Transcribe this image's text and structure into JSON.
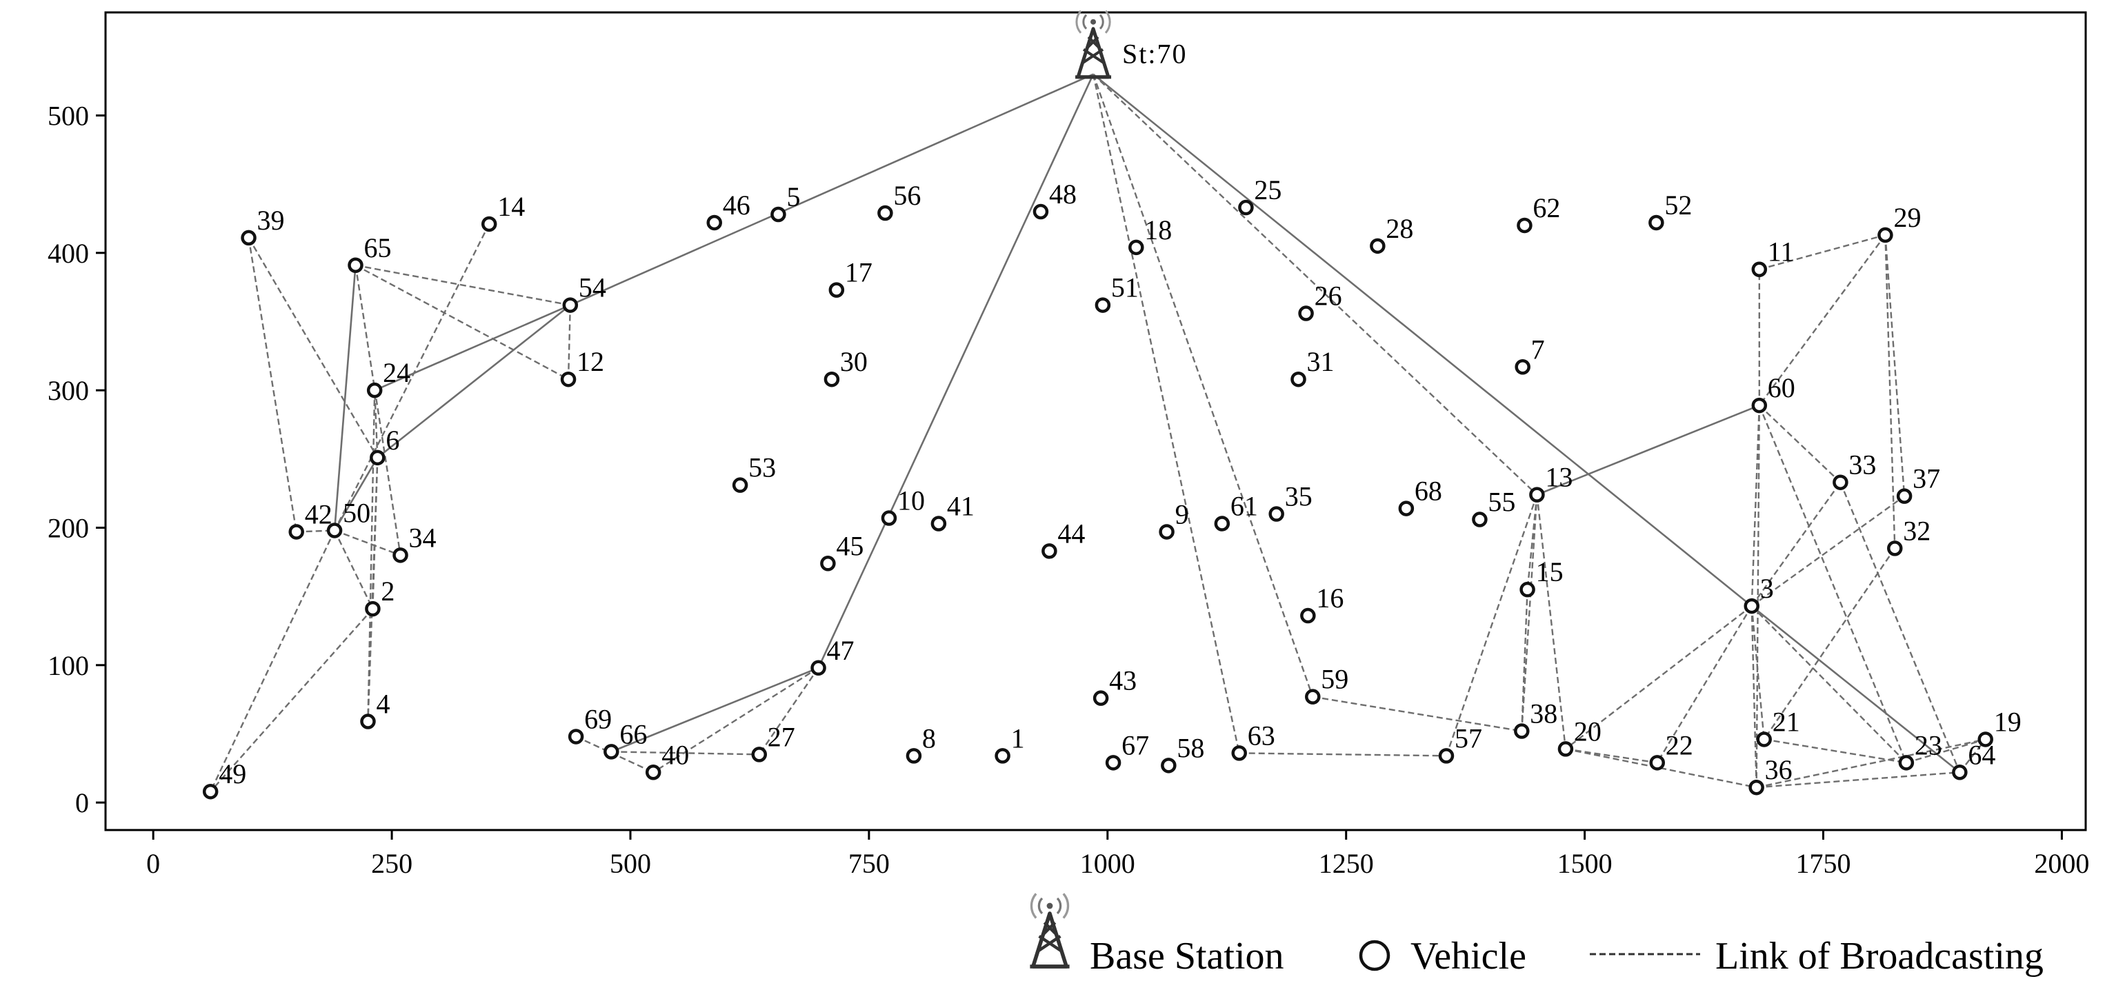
{
  "chart_data": {
    "type": "network",
    "xlim": [
      -50,
      2025
    ],
    "ylim": [
      -20,
      575
    ],
    "xticks": [
      0,
      250,
      500,
      750,
      1000,
      1250,
      1500,
      1750,
      2000
    ],
    "yticks": [
      0,
      100,
      200,
      300,
      400,
      500
    ],
    "base_station": {
      "label": "St:70",
      "x": 985,
      "y": 530
    },
    "vehicles": [
      {
        "id": "1",
        "x": 890,
        "y": 34
      },
      {
        "id": "2",
        "x": 230,
        "y": 141
      },
      {
        "id": "3",
        "x": 1675,
        "y": 143
      },
      {
        "id": "4",
        "x": 225,
        "y": 59
      },
      {
        "id": "5",
        "x": 655,
        "y": 428
      },
      {
        "id": "6",
        "x": 235,
        "y": 251
      },
      {
        "id": "7",
        "x": 1435,
        "y": 317
      },
      {
        "id": "8",
        "x": 797,
        "y": 34
      },
      {
        "id": "9",
        "x": 1062,
        "y": 197
      },
      {
        "id": "10",
        "x": 771,
        "y": 207
      },
      {
        "id": "11",
        "x": 1683,
        "y": 388
      },
      {
        "id": "12",
        "x": 435,
        "y": 308
      },
      {
        "id": "13",
        "x": 1450,
        "y": 224
      },
      {
        "id": "14",
        "x": 352,
        "y": 421
      },
      {
        "id": "15",
        "x": 1440,
        "y": 155
      },
      {
        "id": "16",
        "x": 1210,
        "y": 136
      },
      {
        "id": "17",
        "x": 716,
        "y": 373
      },
      {
        "id": "18",
        "x": 1030,
        "y": 404
      },
      {
        "id": "19",
        "x": 1920,
        "y": 46
      },
      {
        "id": "20",
        "x": 1480,
        "y": 39
      },
      {
        "id": "21",
        "x": 1688,
        "y": 46
      },
      {
        "id": "22",
        "x": 1576,
        "y": 29
      },
      {
        "id": "23",
        "x": 1837,
        "y": 29
      },
      {
        "id": "24",
        "x": 232,
        "y": 300
      },
      {
        "id": "25",
        "x": 1145,
        "y": 433
      },
      {
        "id": "26",
        "x": 1208,
        "y": 356
      },
      {
        "id": "27",
        "x": 635,
        "y": 35
      },
      {
        "id": "28",
        "x": 1283,
        "y": 405
      },
      {
        "id": "29",
        "x": 1815,
        "y": 413
      },
      {
        "id": "30",
        "x": 711,
        "y": 308
      },
      {
        "id": "31",
        "x": 1200,
        "y": 308
      },
      {
        "id": "32",
        "x": 1825,
        "y": 185
      },
      {
        "id": "33",
        "x": 1768,
        "y": 233
      },
      {
        "id": "34",
        "x": 259,
        "y": 180
      },
      {
        "id": "35",
        "x": 1177,
        "y": 210
      },
      {
        "id": "36",
        "x": 1680,
        "y": 11
      },
      {
        "id": "37",
        "x": 1835,
        "y": 223
      },
      {
        "id": "38",
        "x": 1434,
        "y": 52
      },
      {
        "id": "39",
        "x": 100,
        "y": 411
      },
      {
        "id": "40",
        "x": 524,
        "y": 22
      },
      {
        "id": "41",
        "x": 823,
        "y": 203
      },
      {
        "id": "42",
        "x": 150,
        "y": 197
      },
      {
        "id": "43",
        "x": 993,
        "y": 76
      },
      {
        "id": "44",
        "x": 939,
        "y": 183
      },
      {
        "id": "45",
        "x": 707,
        "y": 174
      },
      {
        "id": "46",
        "x": 588,
        "y": 422
      },
      {
        "id": "47",
        "x": 697,
        "y": 98
      },
      {
        "id": "48",
        "x": 930,
        "y": 430
      },
      {
        "id": "49",
        "x": 60,
        "y": 8
      },
      {
        "id": "50",
        "x": 190,
        "y": 198
      },
      {
        "id": "51",
        "x": 995,
        "y": 362
      },
      {
        "id": "52",
        "x": 1575,
        "y": 422
      },
      {
        "id": "53",
        "x": 615,
        "y": 231
      },
      {
        "id": "54",
        "x": 437,
        "y": 362
      },
      {
        "id": "55",
        "x": 1390,
        "y": 206
      },
      {
        "id": "56",
        "x": 767,
        "y": 429
      },
      {
        "id": "57",
        "x": 1355,
        "y": 34
      },
      {
        "id": "58",
        "x": 1064,
        "y": 27
      },
      {
        "id": "59",
        "x": 1215,
        "y": 77
      },
      {
        "id": "60",
        "x": 1683,
        "y": 289
      },
      {
        "id": "61",
        "x": 1120,
        "y": 203
      },
      {
        "id": "62",
        "x": 1437,
        "y": 420
      },
      {
        "id": "63",
        "x": 1138,
        "y": 36
      },
      {
        "id": "64",
        "x": 1893,
        "y": 22
      },
      {
        "id": "65",
        "x": 212,
        "y": 391
      },
      {
        "id": "66",
        "x": 480,
        "y": 37
      },
      {
        "id": "67",
        "x": 1006,
        "y": 29
      },
      {
        "id": "68",
        "x": 1313,
        "y": 214
      },
      {
        "id": "69",
        "x": 443,
        "y": 48
      }
    ],
    "solid_links": [
      [
        "70",
        "54"
      ],
      [
        "70",
        "3"
      ],
      [
        "70",
        "47"
      ],
      [
        "54",
        "6"
      ],
      [
        "6",
        "50"
      ],
      [
        "47",
        "66"
      ],
      [
        "60",
        "13"
      ],
      [
        "3",
        "64"
      ],
      [
        "65",
        "50"
      ],
      [
        "24",
        "54"
      ]
    ],
    "dashed_links": [
      [
        "70",
        "13"
      ],
      [
        "70",
        "63"
      ],
      [
        "70",
        "59"
      ],
      [
        "47",
        "40"
      ],
      [
        "66",
        "27"
      ],
      [
        "69",
        "40"
      ],
      [
        "47",
        "27"
      ],
      [
        "65",
        "54"
      ],
      [
        "65",
        "12"
      ],
      [
        "54",
        "12"
      ],
      [
        "65",
        "34"
      ],
      [
        "14",
        "50"
      ],
      [
        "39",
        "42"
      ],
      [
        "39",
        "6"
      ],
      [
        "42",
        "50"
      ],
      [
        "50",
        "34"
      ],
      [
        "50",
        "2"
      ],
      [
        "6",
        "2"
      ],
      [
        "6",
        "4"
      ],
      [
        "24",
        "4"
      ],
      [
        "2",
        "49"
      ],
      [
        "50",
        "49"
      ],
      [
        "6",
        "24"
      ],
      [
        "13",
        "57"
      ],
      [
        "13",
        "38"
      ],
      [
        "13",
        "20"
      ],
      [
        "13",
        "15"
      ],
      [
        "15",
        "38"
      ],
      [
        "59",
        "38"
      ],
      [
        "63",
        "57"
      ],
      [
        "20",
        "22"
      ],
      [
        "20",
        "36"
      ],
      [
        "3",
        "20"
      ],
      [
        "3",
        "22"
      ],
      [
        "3",
        "36"
      ],
      [
        "3",
        "21"
      ],
      [
        "3",
        "33"
      ],
      [
        "3",
        "37"
      ],
      [
        "3",
        "23"
      ],
      [
        "60",
        "3"
      ],
      [
        "60",
        "11"
      ],
      [
        "60",
        "33"
      ],
      [
        "60",
        "23"
      ],
      [
        "11",
        "29"
      ],
      [
        "29",
        "60"
      ],
      [
        "29",
        "37"
      ],
      [
        "29",
        "32"
      ],
      [
        "32",
        "21"
      ],
      [
        "33",
        "64"
      ],
      [
        "21",
        "23"
      ],
      [
        "36",
        "64"
      ],
      [
        "36",
        "19"
      ],
      [
        "23",
        "19"
      ],
      [
        "64",
        "19"
      ],
      [
        "60",
        "36"
      ]
    ]
  },
  "legend": {
    "base_station": "Base Station",
    "vehicle": "Vehicle",
    "link": "Link of Broadcasting"
  }
}
